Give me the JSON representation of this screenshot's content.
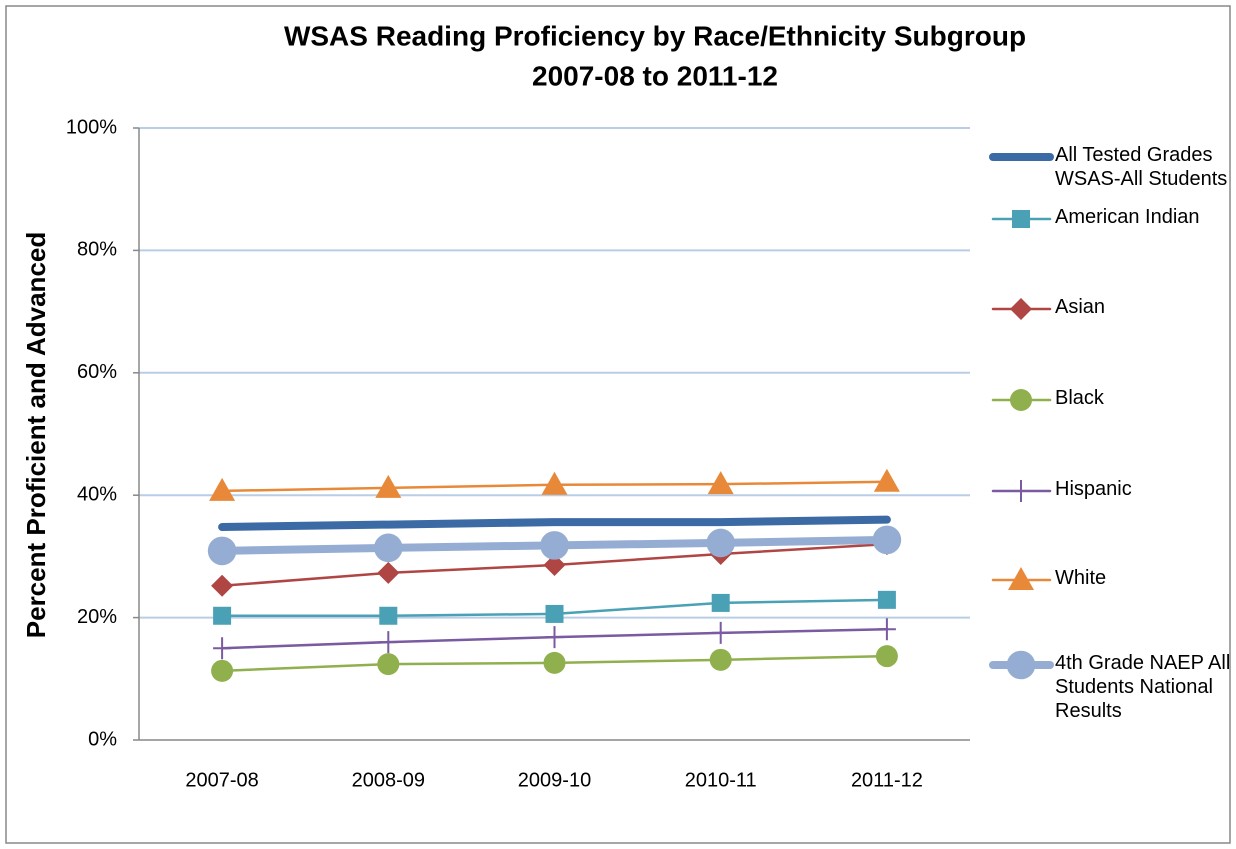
{
  "chart_data": {
    "type": "line",
    "title": "WSAS Reading Proficiency by Race/Ethnicity Subgroup",
    "subtitle": "2007-08 to 2011-12",
    "y_label": "Percent Proficient and Advanced",
    "categories": [
      "2007-08",
      "2008-09",
      "2009-10",
      "2010-11",
      "2011-12"
    ],
    "ylim": [
      0,
      100
    ],
    "yticks": [
      {
        "value": 0,
        "label": "0%"
      },
      {
        "value": 20,
        "label": "20%"
      },
      {
        "value": 40,
        "label": "40%"
      },
      {
        "value": 60,
        "label": "60%"
      },
      {
        "value": 80,
        "label": "80%"
      },
      {
        "value": 100,
        "label": "100%"
      }
    ],
    "grid": true,
    "legend": "right",
    "series": [
      {
        "name": "All Tested Grades WSAS-All Students",
        "color": "#3c6aa5",
        "marker": "none",
        "width": 8,
        "values": [
          34.8,
          35.2,
          35.6,
          35.6,
          36.0
        ]
      },
      {
        "name": "American Indian",
        "color": "#4aa1b5",
        "marker": "square",
        "width": 2.5,
        "values": [
          20.3,
          20.3,
          20.6,
          22.4,
          22.9
        ]
      },
      {
        "name": "Asian",
        "color": "#b04644",
        "marker": "diamond",
        "width": 2.5,
        "values": [
          25.2,
          27.3,
          28.6,
          30.4,
          32.0
        ]
      },
      {
        "name": "Black",
        "color": "#8fb04c",
        "marker": "circle",
        "width": 2.5,
        "values": [
          11.3,
          12.4,
          12.6,
          13.1,
          13.7
        ]
      },
      {
        "name": "Hispanic",
        "color": "#7a5aa0",
        "marker": "plus",
        "width": 2.5,
        "values": [
          15.0,
          16.0,
          16.8,
          17.5,
          18.1
        ]
      },
      {
        "name": "White",
        "color": "#e8893a",
        "marker": "triangle",
        "width": 2.5,
        "values": [
          40.7,
          41.2,
          41.7,
          41.8,
          42.2
        ]
      },
      {
        "name": "4th Grade NAEP All Students National Results",
        "color": "#96add3",
        "marker": "circle",
        "width": 8,
        "values": [
          30.9,
          31.4,
          31.8,
          32.2,
          32.7
        ]
      }
    ]
  }
}
